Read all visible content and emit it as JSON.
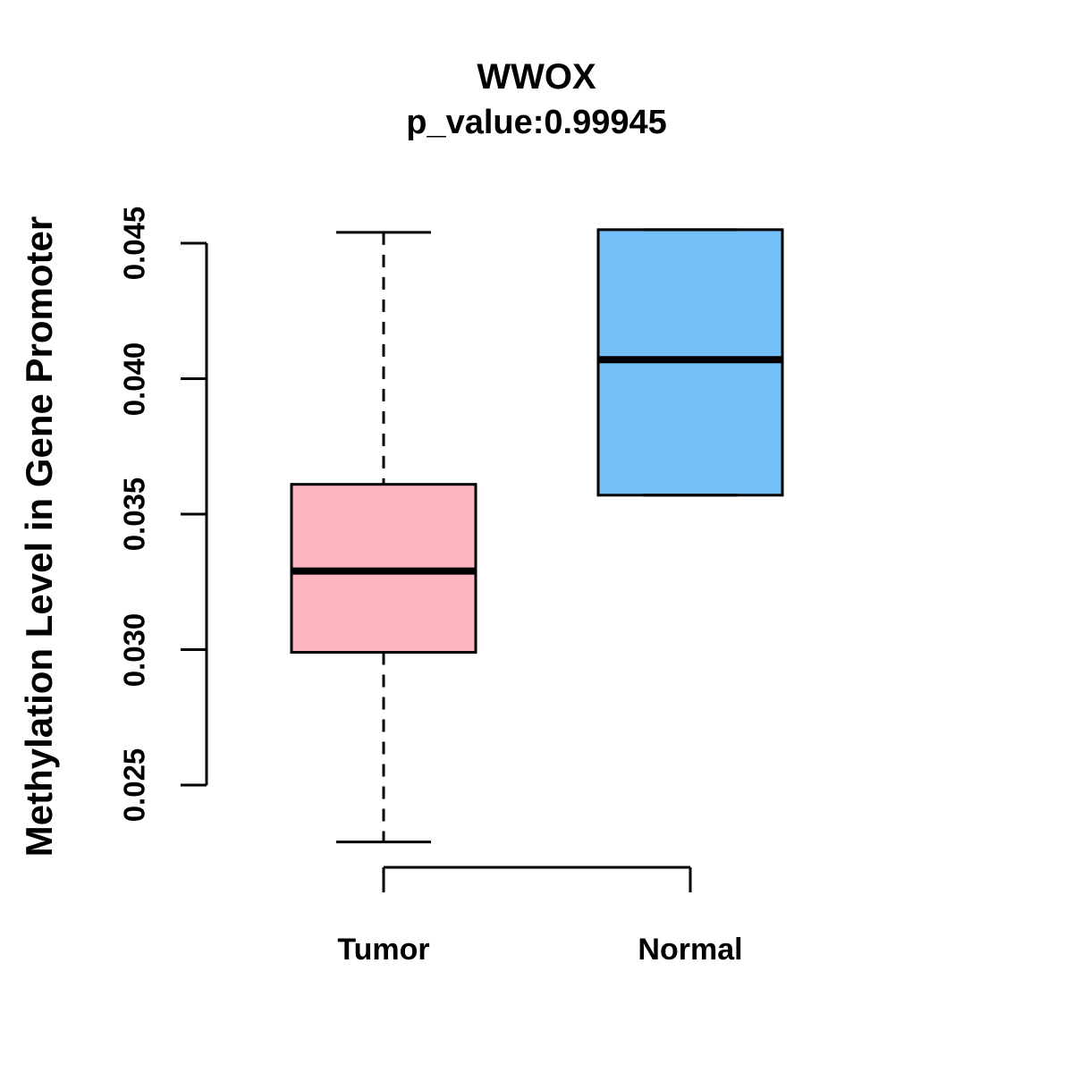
{
  "chart_data": {
    "type": "boxplot",
    "title": "WWOX",
    "subtitle": "p_value:0.99945",
    "ylabel": "Methylation Level in Gene Promoter",
    "categories": [
      "Tumor",
      "Normal"
    ],
    "y_axis": {
      "min": 0.025,
      "max": 0.045,
      "ticks": [
        0.025,
        0.03,
        0.035,
        0.04,
        0.045
      ],
      "tick_labels": [
        "0.025",
        "0.030",
        "0.035",
        "0.040",
        "0.045"
      ]
    },
    "grid": false,
    "legend_position": "none",
    "series": [
      {
        "name": "Tumor",
        "fill_color": "#FFB6C1",
        "whisker_low": 0.0229,
        "q1": 0.0299,
        "median": 0.0329,
        "q3": 0.0361,
        "whisker_high": 0.0454,
        "whisker_style": "dashed"
      },
      {
        "name": "Normal",
        "fill_color": "#74BFF7",
        "whisker_low": 0.0357,
        "q1": 0.0357,
        "median": 0.0407,
        "q3": 0.0455,
        "whisker_high": 0.0455,
        "whisker_style": "dashed"
      }
    ],
    "stroke_color": "#000000",
    "background_color": "#FFFFFF"
  }
}
